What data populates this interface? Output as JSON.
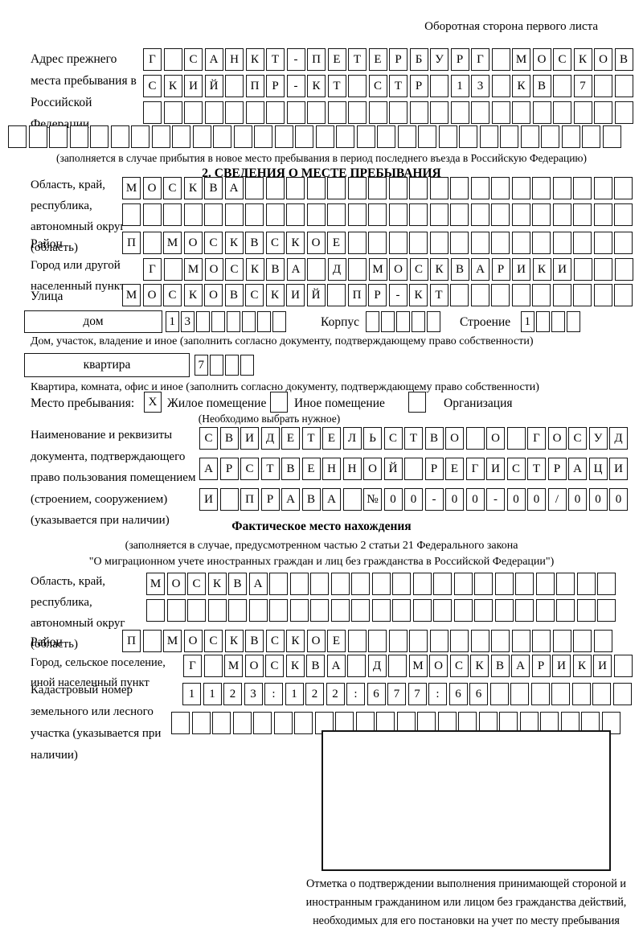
{
  "page": {
    "header_note": "Оборотная сторона первого листа"
  },
  "prev_address": {
    "label": "Адрес прежнего места пребывания в Российской Федерации",
    "rows": [
      "Г САНКТ-ПЕТЕРБУРГ МОСКОВ",
      "СКИЙ ПР-КТ СТР 13 КВ 7",
      "",
      ""
    ],
    "caption": "(заполняется в случае прибытия в новое место пребывания в период последнего въезда в Российскую Федерацию)"
  },
  "section2": {
    "title": "2. СВЕДЕНИЯ О МЕСТЕ ПРЕБЫВАНИЯ",
    "oblast": {
      "label": "Область, край, республика, автономный округ (область)",
      "row1": "МОСКВА",
      "row2": ""
    },
    "raion": {
      "label": "Район",
      "row": "П МОСКВСКОЕ"
    },
    "city": {
      "label": "Город или другой населенный пункт",
      "row": "Г МОСКВА Д МОСКВАРИКИ"
    },
    "street": {
      "label": "Улица",
      "row": "МОСКОВСКИЙ ПР-КТ"
    },
    "house": {
      "box_label": "дом",
      "row": "13",
      "korpus_label": "Корпус",
      "korpus_row": "",
      "stroenie_label": "Строение",
      "stroenie_row": "1",
      "caption": "Дом, участок, владение и иное (заполнить согласно документу, подтверждающему право собственности)"
    },
    "apartment": {
      "box_label": "квартира",
      "row": "7",
      "caption": "Квартира, комната, офис и иное (заполнить согласно документу, подтверждающему право собственности)"
    },
    "stay_type": {
      "label": "Место пребывания:",
      "options": [
        {
          "mark": "X",
          "label": "Жилое помещение"
        },
        {
          "mark": "",
          "label": "Иное помещение"
        },
        {
          "mark": "",
          "label": "Организация"
        }
      ],
      "note": "(Необходимо выбрать нужное)"
    },
    "document": {
      "label": "Наименование и реквизиты документа, подтверждающего право пользования помещением (строением, сооружением) (указывается при наличии)",
      "rows": [
        "СВИДЕТЕЛЬСТВО О ГОСУД",
        "АРСТВЕННОЙ РЕГИСТРАЦИ",
        "И ПРАВА №00-00-00/000"
      ]
    }
  },
  "factual": {
    "title": "Фактическое место нахождения",
    "caption_line1": "(заполняется в случае, предусмотренном частью 2 статьи 21 Федерального закона",
    "caption_line2": "\"О миграционном учете иностранных граждан и лиц без гражданства в Российской Федерации\")",
    "oblast": {
      "label": "Область, край, республика, автономный округ (область)",
      "row1": "МОСКВА",
      "row2": ""
    },
    "raion": {
      "label": "Район",
      "row": "П МОСКВСКОЕ"
    },
    "city": {
      "label": "Город, сельское поселение, иной населенный пункт",
      "row": "Г МОСКВА Д МОСКВАРИКИ"
    },
    "cadastral": {
      "label": "Кадастровый номер земельного или лесного участка (указывается при наличии)",
      "row1": "1123:122:677:66",
      "row2": ""
    }
  },
  "stamp": {
    "caption": "Отметка о подтверждении выполнения принимающей стороной и иностранным гражданином или лицом без гражданства действий, необходимых для его постановки на учет по месту пребывания"
  }
}
